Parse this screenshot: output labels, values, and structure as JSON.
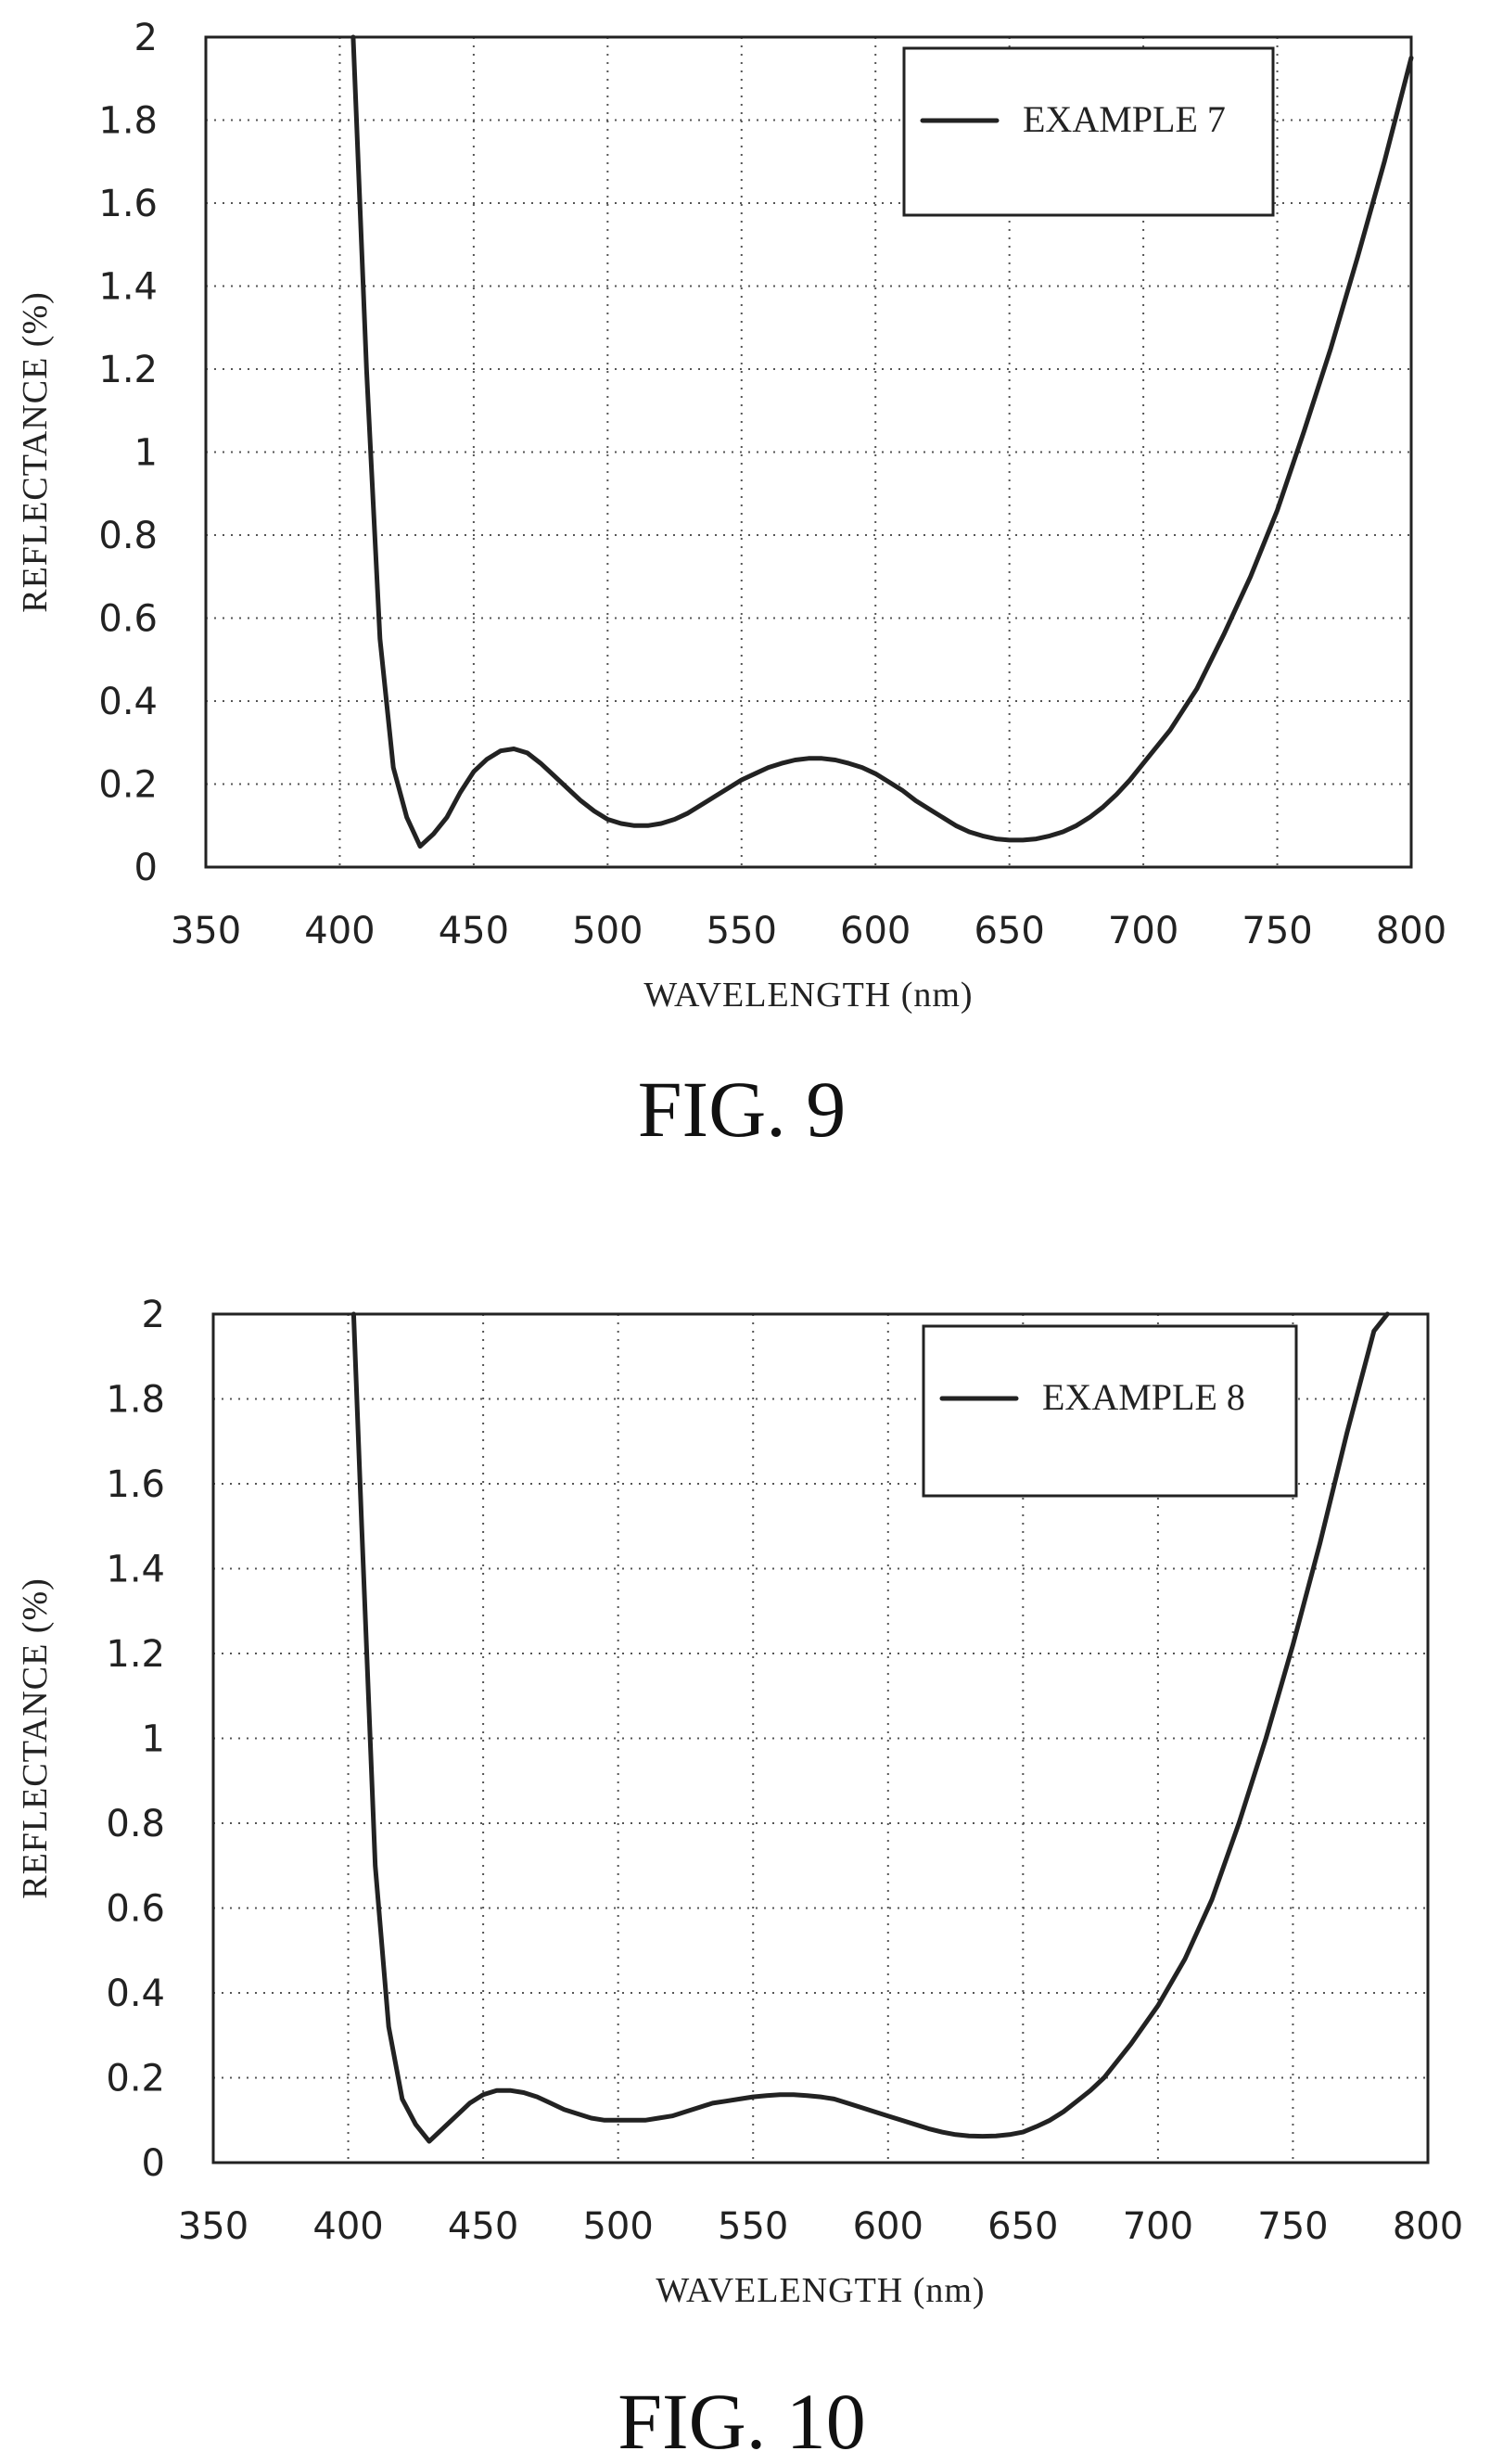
{
  "figures": [
    {
      "caption": "FIG. 9",
      "chart_data": {
        "type": "line",
        "xlabel": "WAVELENGTH (nm)",
        "ylabel": "REFLECTANCE  (%)",
        "xlim": [
          350,
          800
        ],
        "ylim": [
          0,
          2
        ],
        "xticks": [
          "350",
          "400",
          "450",
          "500",
          "550",
          "600",
          "650",
          "700",
          "750",
          "800"
        ],
        "yticks": [
          "0",
          "0.2",
          "0.4",
          "0.6",
          "0.8",
          "1",
          "1.2",
          "1.4",
          "1.6",
          "1.8",
          "2"
        ],
        "grid": true,
        "legend_position": "top-right",
        "series": [
          {
            "name": "EXAMPLE 7",
            "x": [
              405,
              410,
              415,
              420,
              425,
              430,
              435,
              440,
              445,
              450,
              455,
              460,
              465,
              470,
              475,
              480,
              485,
              490,
              495,
              500,
              505,
              510,
              515,
              520,
              525,
              530,
              535,
              540,
              545,
              550,
              555,
              560,
              565,
              570,
              575,
              580,
              585,
              590,
              595,
              600,
              605,
              610,
              615,
              620,
              625,
              630,
              635,
              640,
              645,
              650,
              655,
              660,
              665,
              670,
              675,
              680,
              685,
              690,
              695,
              700,
              710,
              720,
              730,
              740,
              750,
              760,
              770,
              780,
              790,
              800
            ],
            "y": [
              2.0,
              1.2,
              0.55,
              0.24,
              0.12,
              0.05,
              0.08,
              0.12,
              0.18,
              0.23,
              0.26,
              0.28,
              0.285,
              0.275,
              0.25,
              0.22,
              0.19,
              0.16,
              0.135,
              0.115,
              0.105,
              0.1,
              0.1,
              0.105,
              0.115,
              0.13,
              0.15,
              0.17,
              0.19,
              0.21,
              0.225,
              0.24,
              0.25,
              0.258,
              0.262,
              0.262,
              0.258,
              0.25,
              0.24,
              0.225,
              0.205,
              0.185,
              0.16,
              0.14,
              0.12,
              0.1,
              0.085,
              0.075,
              0.068,
              0.065,
              0.065,
              0.068,
              0.075,
              0.085,
              0.1,
              0.12,
              0.145,
              0.175,
              0.21,
              0.25,
              0.33,
              0.43,
              0.56,
              0.7,
              0.86,
              1.05,
              1.25,
              1.47,
              1.7,
              1.95
            ]
          }
        ]
      }
    },
    {
      "caption": "FIG. 10",
      "chart_data": {
        "type": "line",
        "xlabel": "WAVELENGTH (nm)",
        "ylabel": "REFLECTANCE  (%)",
        "xlim": [
          350,
          800
        ],
        "ylim": [
          0,
          2
        ],
        "xticks": [
          "350",
          "400",
          "450",
          "500",
          "550",
          "600",
          "650",
          "700",
          "750",
          "800"
        ],
        "yticks": [
          "0",
          "0.2",
          "0.4",
          "0.6",
          "0.8",
          "1",
          "1.2",
          "1.4",
          "1.6",
          "1.8",
          "2"
        ],
        "grid": true,
        "legend_position": "top-right",
        "series": [
          {
            "name": "EXAMPLE 8",
            "x": [
              402,
              405,
              410,
              415,
              420,
              425,
              430,
              435,
              440,
              445,
              450,
              455,
              460,
              465,
              470,
              475,
              480,
              485,
              490,
              495,
              500,
              505,
              510,
              515,
              520,
              525,
              530,
              535,
              540,
              545,
              550,
              555,
              560,
              565,
              570,
              575,
              580,
              585,
              590,
              595,
              600,
              605,
              610,
              615,
              620,
              625,
              630,
              635,
              640,
              645,
              650,
              655,
              660,
              665,
              670,
              675,
              680,
              690,
              700,
              710,
              720,
              730,
              740,
              750,
              760,
              770,
              780,
              785
            ],
            "y": [
              2.0,
              1.5,
              0.7,
              0.32,
              0.15,
              0.09,
              0.05,
              0.08,
              0.11,
              0.14,
              0.16,
              0.17,
              0.17,
              0.165,
              0.155,
              0.14,
              0.125,
              0.115,
              0.105,
              0.1,
              0.1,
              0.1,
              0.1,
              0.105,
              0.11,
              0.12,
              0.13,
              0.14,
              0.145,
              0.15,
              0.155,
              0.158,
              0.16,
              0.16,
              0.158,
              0.155,
              0.15,
              0.14,
              0.13,
              0.12,
              0.11,
              0.1,
              0.09,
              0.08,
              0.072,
              0.066,
              0.063,
              0.062,
              0.063,
              0.066,
              0.072,
              0.085,
              0.1,
              0.12,
              0.145,
              0.17,
              0.2,
              0.28,
              0.37,
              0.48,
              0.62,
              0.8,
              1.0,
              1.22,
              1.46,
              1.72,
              1.96,
              2.0
            ]
          }
        ]
      }
    }
  ]
}
